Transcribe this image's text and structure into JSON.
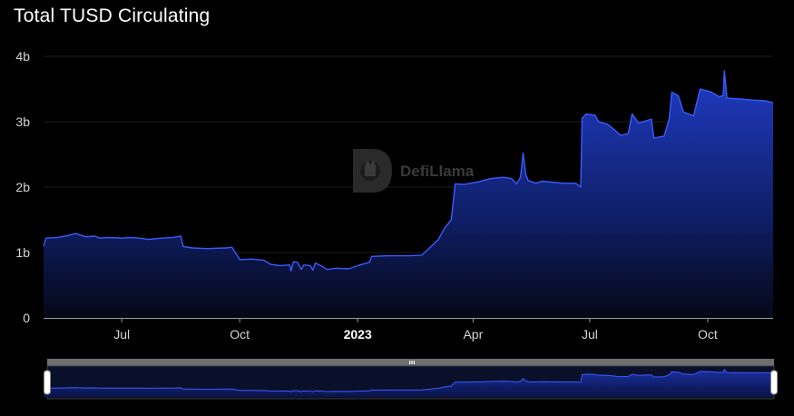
{
  "title": "Total TUSD Circulating",
  "watermark": "DefiLlama",
  "colors": {
    "background": "#000000",
    "line": "#3a5bff",
    "area_top": "#1d36b8",
    "area_bottom": "#050818",
    "grid": "#1e1e1e",
    "axis": "#9a9a9a"
  },
  "chart_data": {
    "type": "area",
    "title": "Total TUSD Circulating",
    "xlabel": "",
    "ylabel": "",
    "ylim": [
      0,
      4000000000
    ],
    "y_ticks": [
      "0",
      "1b",
      "2b",
      "3b",
      "4b"
    ],
    "x_ticks": [
      "Jul",
      "Oct",
      "2023",
      "Apr",
      "Jul",
      "Oct"
    ],
    "x_ticks_bold": [
      false,
      false,
      true,
      false,
      false,
      false
    ],
    "x_tick_dates": [
      "2022-07-01",
      "2022-10-01",
      "2023-01-01",
      "2023-04-01",
      "2023-07-01",
      "2023-10-01"
    ],
    "x_range": [
      "2022-05-01",
      "2023-11-21"
    ],
    "grid": true,
    "series": [
      {
        "points": [
          [
            "2022-05-01",
            1.1
          ],
          [
            "2022-05-03",
            1.22
          ],
          [
            "2022-05-12",
            1.23
          ],
          [
            "2022-05-20",
            1.26
          ],
          [
            "2022-05-26",
            1.29
          ],
          [
            "2022-06-03",
            1.24
          ],
          [
            "2022-06-10",
            1.25
          ],
          [
            "2022-06-14",
            1.22
          ],
          [
            "2022-06-20",
            1.23
          ],
          [
            "2022-07-01",
            1.22
          ],
          [
            "2022-07-08",
            1.23
          ],
          [
            "2022-07-15",
            1.22
          ],
          [
            "2022-07-22",
            1.2
          ],
          [
            "2022-08-01",
            1.22
          ],
          [
            "2022-08-10",
            1.23
          ],
          [
            "2022-08-16",
            1.25
          ],
          [
            "2022-08-18",
            1.09
          ],
          [
            "2022-08-25",
            1.07
          ],
          [
            "2022-09-05",
            1.06
          ],
          [
            "2022-09-20",
            1.07
          ],
          [
            "2022-09-25",
            1.08
          ],
          [
            "2022-10-01",
            0.89
          ],
          [
            "2022-10-10",
            0.9
          ],
          [
            "2022-10-20",
            0.88
          ],
          [
            "2022-10-25",
            0.82
          ],
          [
            "2022-11-01",
            0.8
          ],
          [
            "2022-11-09",
            0.81
          ],
          [
            "2022-11-10",
            0.72
          ],
          [
            "2022-11-12",
            0.86
          ],
          [
            "2022-11-15",
            0.85
          ],
          [
            "2022-11-18",
            0.74
          ],
          [
            "2022-11-20",
            0.81
          ],
          [
            "2022-11-25",
            0.8
          ],
          [
            "2022-11-27",
            0.73
          ],
          [
            "2022-11-29",
            0.84
          ],
          [
            "2022-12-05",
            0.78
          ],
          [
            "2022-12-08",
            0.74
          ],
          [
            "2022-12-15",
            0.76
          ],
          [
            "2022-12-25",
            0.75
          ],
          [
            "2023-01-01",
            0.8
          ],
          [
            "2023-01-10",
            0.85
          ],
          [
            "2023-01-12",
            0.94
          ],
          [
            "2023-01-25",
            0.95
          ],
          [
            "2023-02-10",
            0.95
          ],
          [
            "2023-02-20",
            0.96
          ],
          [
            "2023-02-25",
            1.05
          ],
          [
            "2023-03-05",
            1.2
          ],
          [
            "2023-03-10",
            1.38
          ],
          [
            "2023-03-15",
            1.5
          ],
          [
            "2023-03-18",
            2.05
          ],
          [
            "2023-03-25",
            2.04
          ],
          [
            "2023-04-05",
            2.08
          ],
          [
            "2023-04-15",
            2.13
          ],
          [
            "2023-04-25",
            2.15
          ],
          [
            "2023-05-01",
            2.13
          ],
          [
            "2023-05-05",
            2.05
          ],
          [
            "2023-05-08",
            2.15
          ],
          [
            "2023-05-10",
            2.52
          ],
          [
            "2023-05-12",
            2.2
          ],
          [
            "2023-05-14",
            2.1
          ],
          [
            "2023-05-20",
            2.06
          ],
          [
            "2023-05-25",
            2.09
          ],
          [
            "2023-06-10",
            2.06
          ],
          [
            "2023-06-20",
            2.06
          ],
          [
            "2023-06-24",
            2.0
          ],
          [
            "2023-06-25",
            3.05
          ],
          [
            "2023-06-28",
            3.12
          ],
          [
            "2023-07-05",
            3.1
          ],
          [
            "2023-07-08",
            3.0
          ],
          [
            "2023-07-15",
            2.96
          ],
          [
            "2023-07-20",
            2.88
          ],
          [
            "2023-07-25",
            2.79
          ],
          [
            "2023-07-31",
            2.82
          ],
          [
            "2023-08-03",
            3.12
          ],
          [
            "2023-08-08",
            2.98
          ],
          [
            "2023-08-15",
            3.02
          ],
          [
            "2023-08-18",
            3.04
          ],
          [
            "2023-08-20",
            2.75
          ],
          [
            "2023-08-28",
            2.78
          ],
          [
            "2023-09-01",
            3.05
          ],
          [
            "2023-09-03",
            3.45
          ],
          [
            "2023-09-08",
            3.4
          ],
          [
            "2023-09-12",
            3.15
          ],
          [
            "2023-09-20",
            3.09
          ],
          [
            "2023-09-25",
            3.5
          ],
          [
            "2023-10-03",
            3.46
          ],
          [
            "2023-10-10",
            3.38
          ],
          [
            "2023-10-13",
            3.4
          ],
          [
            "2023-10-14",
            3.78
          ],
          [
            "2023-10-16",
            3.36
          ],
          [
            "2023-10-25",
            3.35
          ],
          [
            "2023-11-05",
            3.33
          ],
          [
            "2023-11-15",
            3.32
          ],
          [
            "2023-11-21",
            3.29
          ]
        ],
        "value_unit_multiplier": 1000000000
      }
    ]
  },
  "brush": {
    "handle_grip": "|||"
  }
}
